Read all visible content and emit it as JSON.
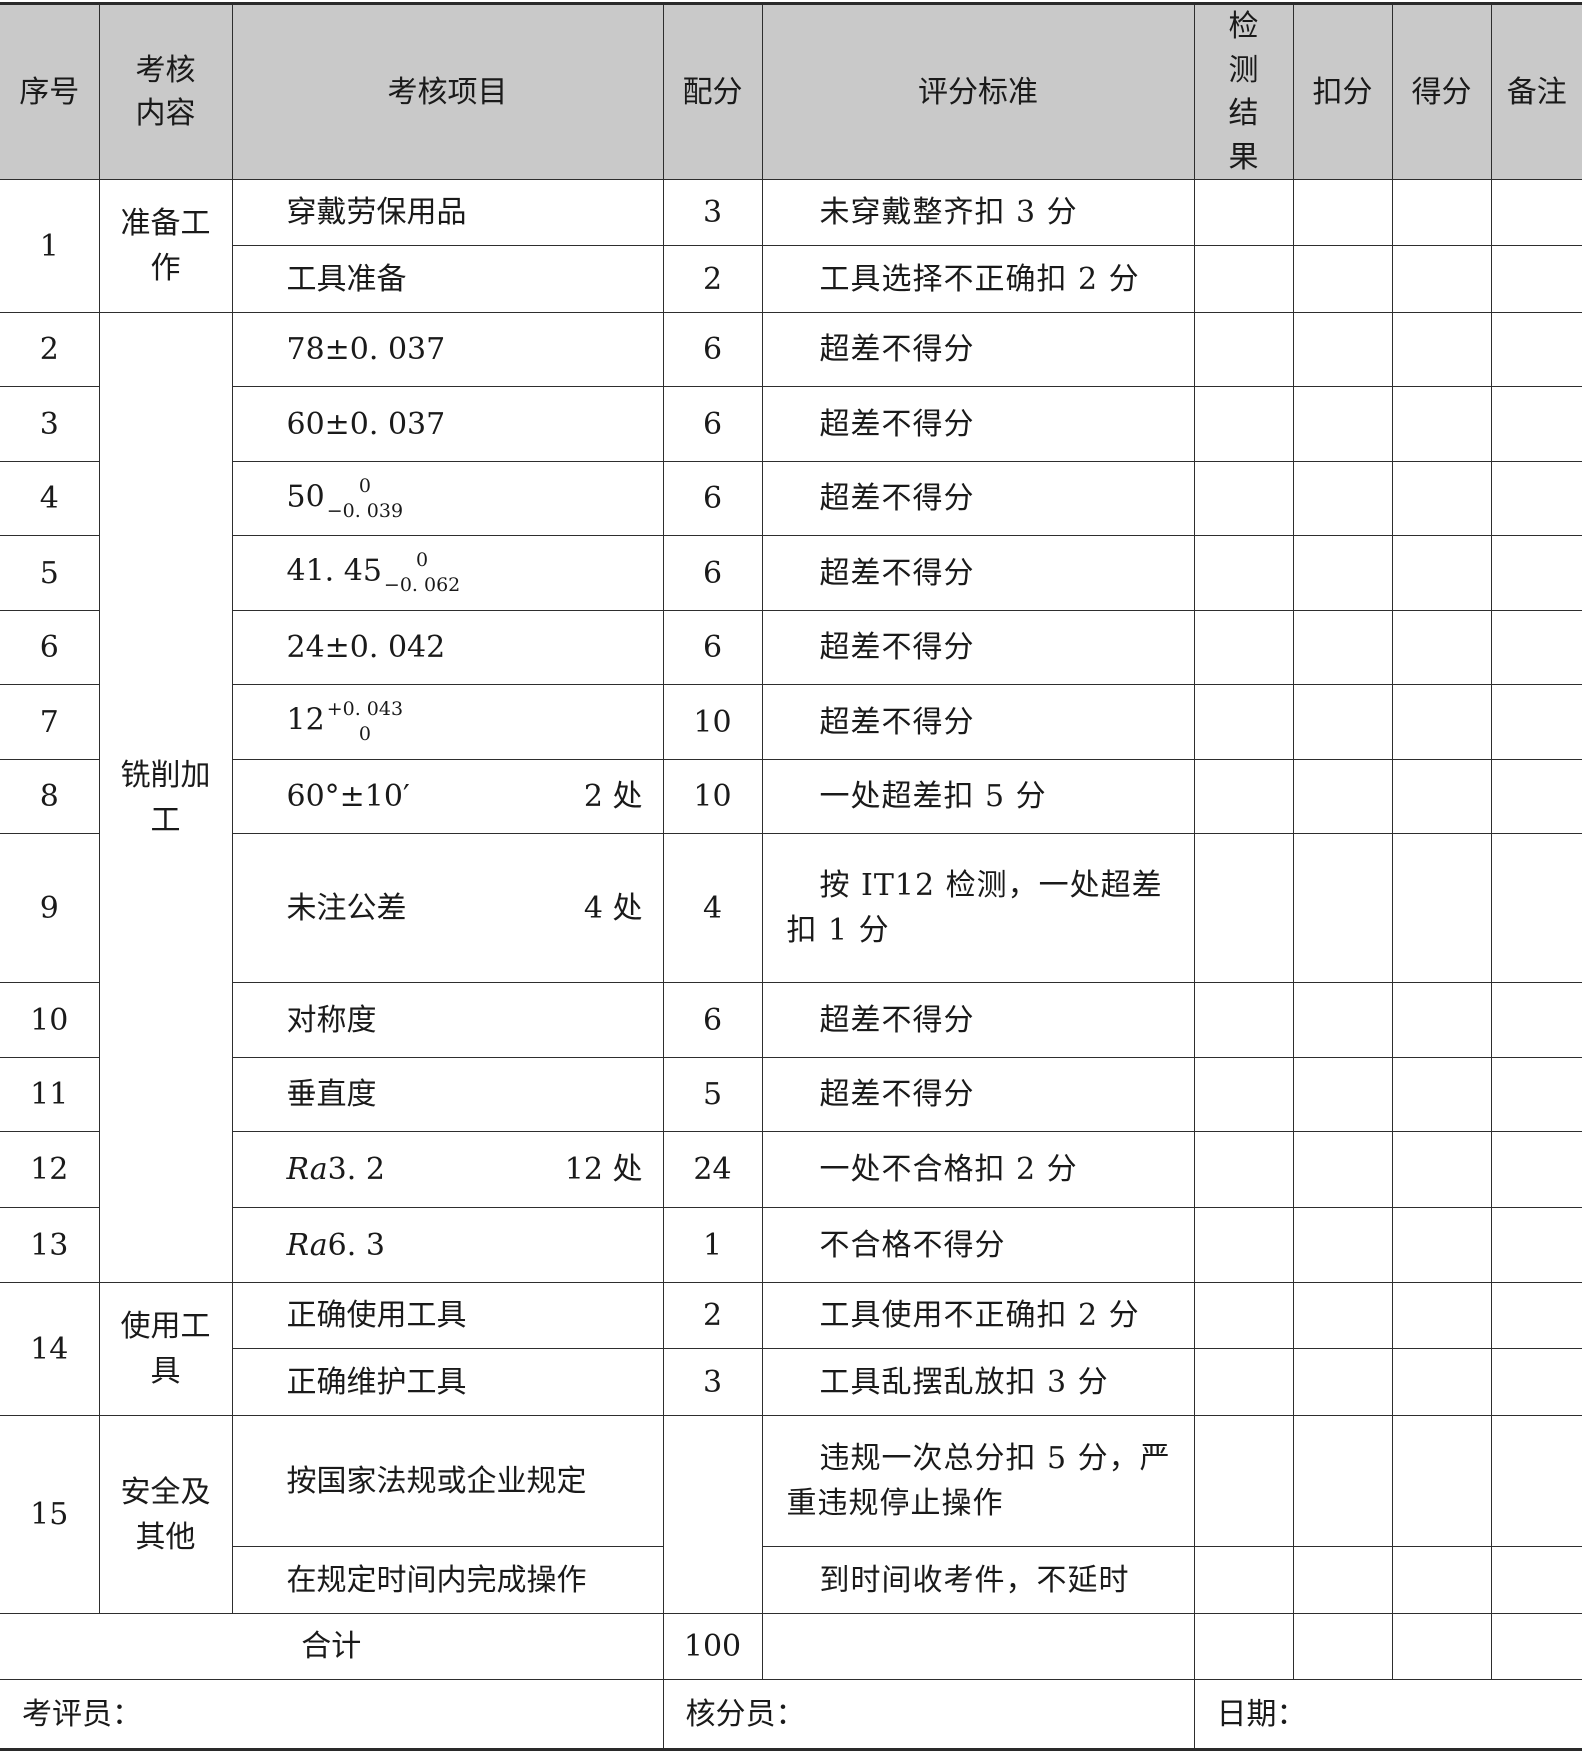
{
  "headers": [
    "序号",
    "考核内容",
    "考核项目",
    "配分",
    "评分标准",
    "检测结果",
    "扣分",
    "得分",
    "备注"
  ],
  "sections": [
    {
      "seq": "1",
      "content": "准备工作",
      "rows": [
        {
          "item": "穿戴劳保用品",
          "score": "3",
          "criteria": "未穿戴整齐扣 3 分"
        },
        {
          "item": "工具准备",
          "score": "2",
          "criteria": "工具选择不正确扣 2 分"
        }
      ]
    },
    {
      "content": "铣削加工",
      "rows": [
        {
          "seq": "2",
          "item": "78±0. 037",
          "score": "6",
          "criteria": "超差不得分"
        },
        {
          "seq": "3",
          "item": "60±0. 037",
          "score": "6",
          "criteria": "超差不得分"
        },
        {
          "seq": "4",
          "item": "50",
          "tol_upper": "0",
          "tol_lower": "−0. 039",
          "score": "6",
          "criteria": "超差不得分"
        },
        {
          "seq": "5",
          "item": "41. 45",
          "tol_upper": "0",
          "tol_lower": "−0. 062",
          "score": "6",
          "criteria": "超差不得分"
        },
        {
          "seq": "6",
          "item": "24±0. 042",
          "score": "6",
          "criteria": "超差不得分"
        },
        {
          "seq": "7",
          "item": "12",
          "tol_upper": "+0. 043",
          "tol_lower": "0",
          "score": "10",
          "criteria": "超差不得分"
        },
        {
          "seq": "8",
          "item": "60°±10′",
          "count": "2 处",
          "score": "10",
          "criteria": "一处超差扣 5 分"
        },
        {
          "seq": "9",
          "item": "未注公差",
          "count": "4 处",
          "score": "4",
          "criteria": "按 IT12 检测，一处超差扣 1 分"
        },
        {
          "seq": "10",
          "item": "对称度",
          "score": "6",
          "criteria": "超差不得分"
        },
        {
          "seq": "11",
          "item": "垂直度",
          "score": "5",
          "criteria": "超差不得分"
        },
        {
          "seq": "12",
          "item_italic": "Ra",
          "item": "3. 2",
          "count": "12 处",
          "score": "24",
          "criteria": "一处不合格扣 2 分"
        },
        {
          "seq": "13",
          "item_italic": "Ra",
          "item": "6. 3",
          "score": "1",
          "criteria": "不合格不得分"
        }
      ]
    },
    {
      "seq": "14",
      "content": "使用工具",
      "rows": [
        {
          "item": "正确使用工具",
          "score": "2",
          "criteria": "工具使用不正确扣 2 分"
        },
        {
          "item": "正确维护工具",
          "score": "3",
          "criteria": "工具乱摆乱放扣 3 分"
        }
      ]
    },
    {
      "seq": "15",
      "content": "安全及其他",
      "score": "",
      "rows": [
        {
          "item": "按国家法规或企业规定",
          "criteria": "违规一次总分扣 5 分，严重违规停止操作"
        },
        {
          "item": "在规定时间内完成操作",
          "criteria": "到时间收考件，不延时"
        }
      ]
    }
  ],
  "total": {
    "label": "合计",
    "score": "100"
  },
  "footer": {
    "examiner": "考评员：",
    "scorer": "核分员：",
    "date": "日期："
  }
}
